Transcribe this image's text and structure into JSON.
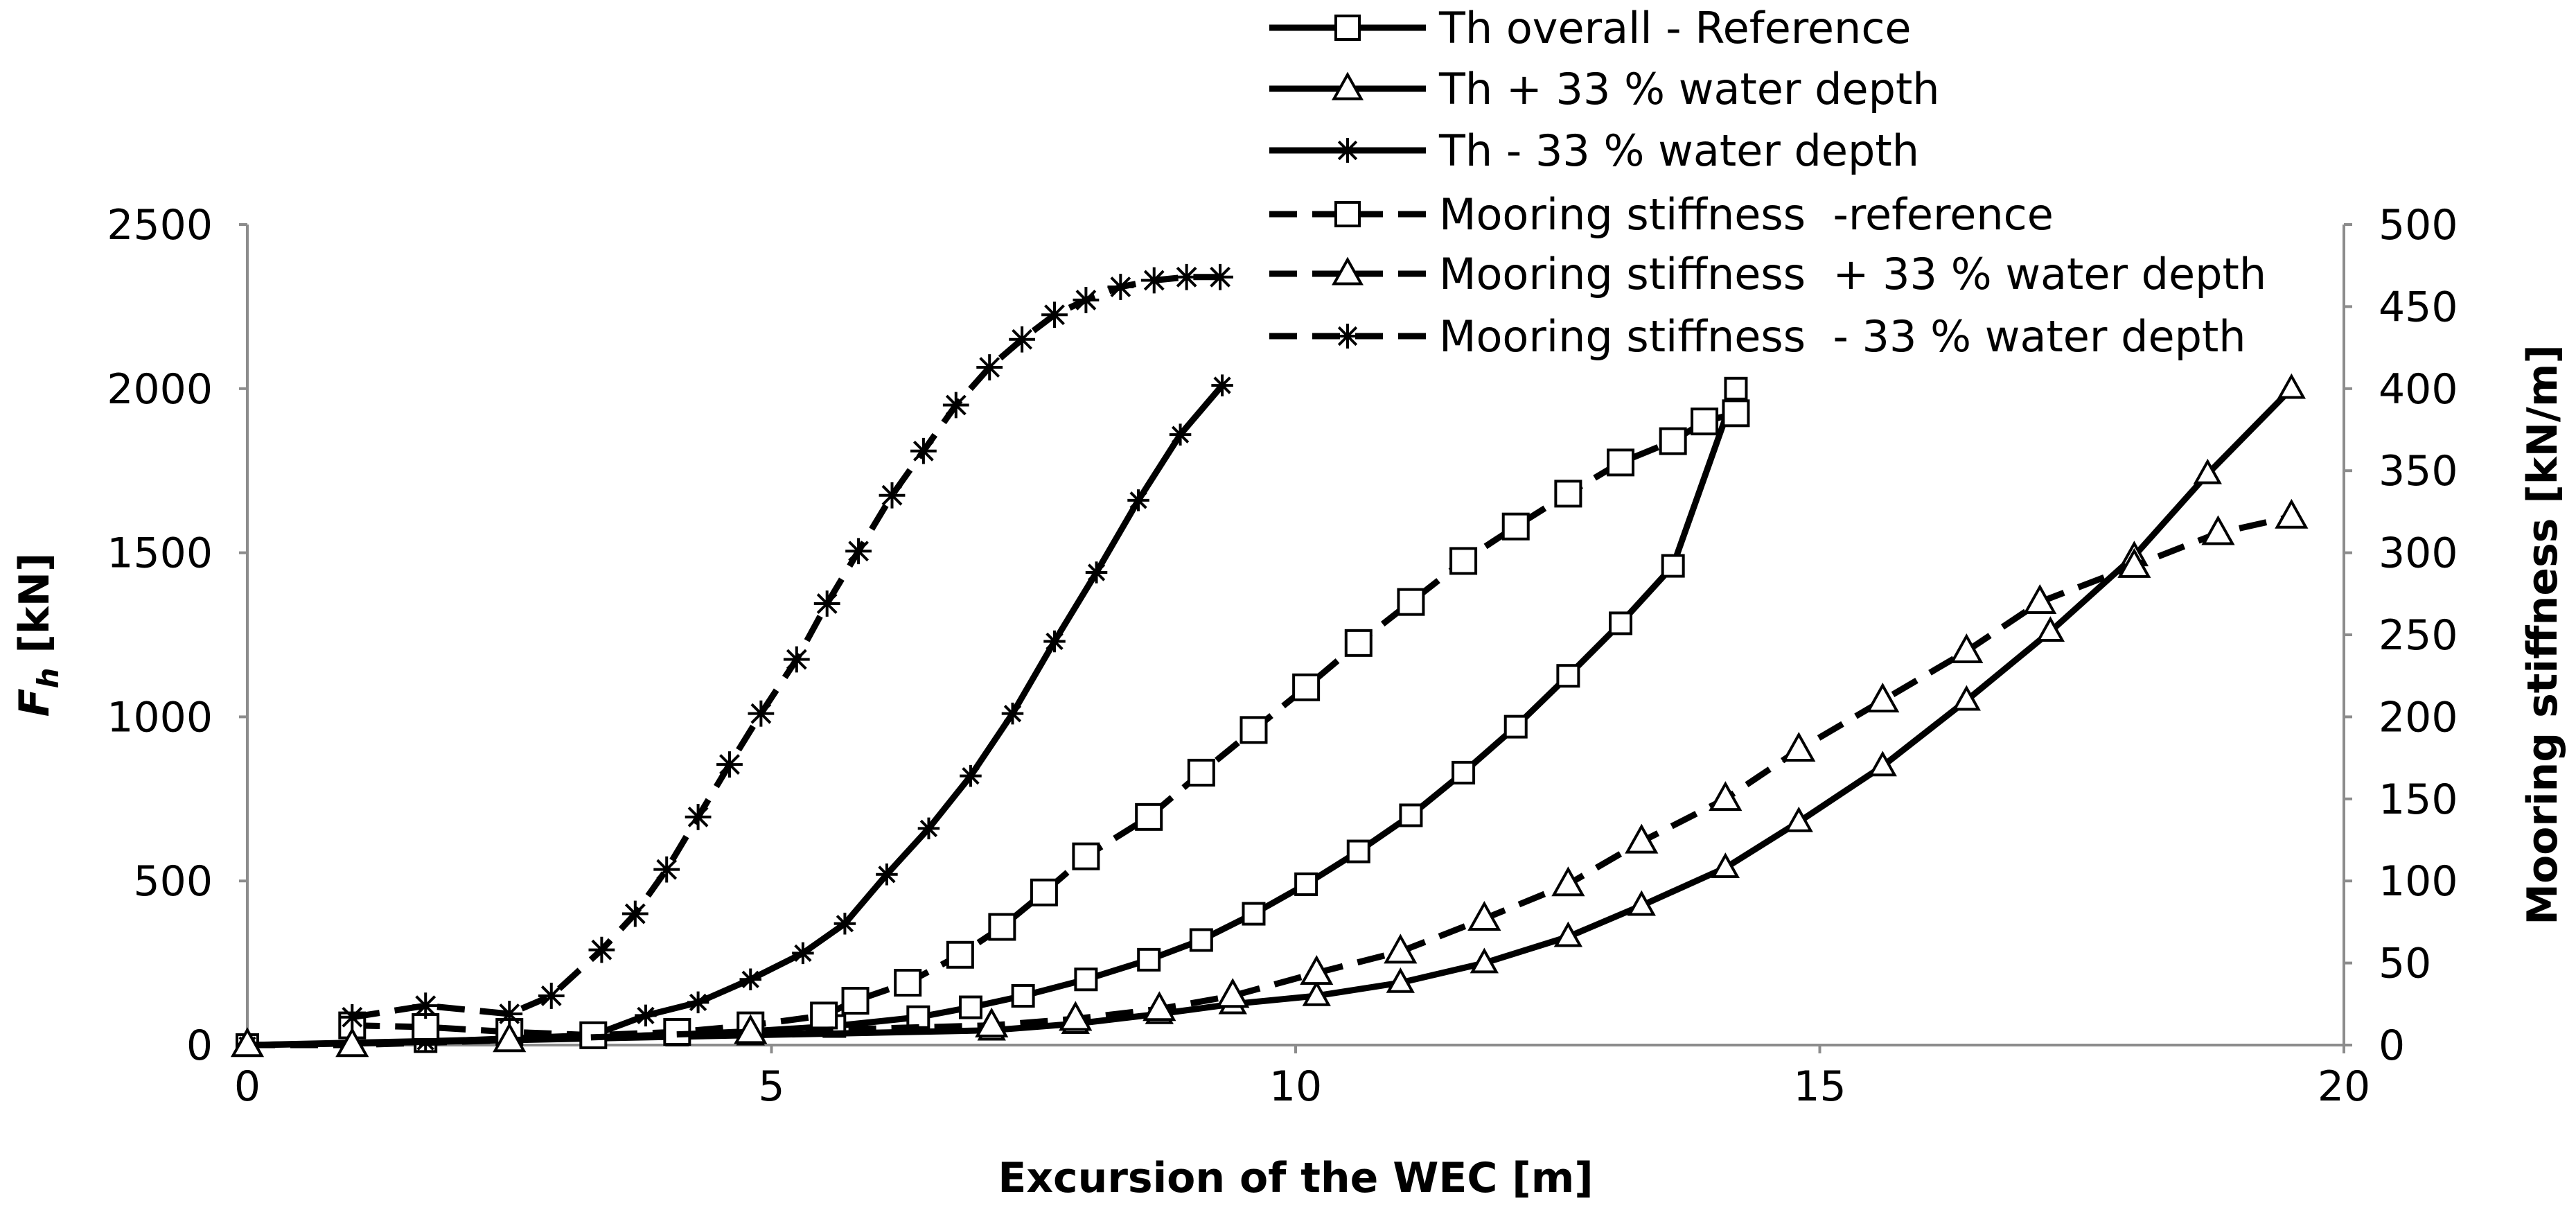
{
  "chart_data": {
    "type": "line",
    "xlabel": "Excursion of the WEC [m]",
    "ylabel": {
      "main": "F",
      "sub": "h",
      "unit": " [kN]"
    },
    "y2label": "Mooring stiffness [kN/m]",
    "xlim": [
      0,
      20
    ],
    "xticks": [
      0,
      5,
      10,
      15,
      20
    ],
    "ylim": [
      0,
      2500
    ],
    "yticks": [
      0,
      500,
      1000,
      1500,
      2000,
      2500
    ],
    "y2lim": [
      0,
      500
    ],
    "y2ticks": [
      0,
      50,
      100,
      150,
      200,
      250,
      300,
      350,
      400,
      450,
      500
    ],
    "grid": false,
    "legend": "top",
    "series": [
      {
        "name": "Th overall - Reference",
        "color": "#000000",
        "dashed": false,
        "marker": "square",
        "x": [
          0,
          1.7,
          2.5,
          3.3,
          4.1,
          4.8,
          5.6,
          6.4,
          6.9,
          7.4,
          8.0,
          8.6,
          9.1,
          9.6,
          10.1,
          10.6,
          11.1,
          11.6,
          12.1,
          12.6,
          13.1,
          13.6,
          14.2
        ],
        "values": [
          0,
          12,
          18,
          24,
          32,
          42,
          58,
          85,
          115,
          150,
          200,
          260,
          320,
          400,
          490,
          590,
          700,
          830,
          970,
          1125,
          1285,
          1460,
          2000
        ]
      },
      {
        "name": "Th + 33 % water depth",
        "color": "#000000",
        "dashed": false,
        "marker": "triangle",
        "x": [
          0,
          1.0,
          2.5,
          4.8,
          7.1,
          7.9,
          8.7,
          9.4,
          10.2,
          11.0,
          11.8,
          12.6,
          13.3,
          14.1,
          14.8,
          15.6,
          16.4,
          17.2,
          18.0,
          18.7,
          19.5
        ],
        "values": [
          0,
          5,
          15,
          30,
          45,
          65,
          95,
          125,
          150,
          190,
          250,
          330,
          425,
          540,
          680,
          850,
          1050,
          1260,
          1490,
          1740,
          2000
        ]
      },
      {
        "name": "Th - 33 % water depth",
        "color": "#000000",
        "dashed": false,
        "marker": "star",
        "x": [
          0,
          1.0,
          1.7,
          2.5,
          3.3,
          3.8,
          4.3,
          4.8,
          5.3,
          5.7,
          6.1,
          6.5,
          6.9,
          7.3,
          7.7,
          8.1,
          8.5,
          8.9,
          9.3
        ],
        "values": [
          0,
          5,
          10,
          20,
          30,
          90,
          130,
          200,
          280,
          370,
          520,
          660,
          820,
          1010,
          1230,
          1440,
          1660,
          1860,
          2010
        ]
      },
      {
        "name": "Mooring stiffness  -reference",
        "color": "#000000",
        "dashed": true,
        "marker": "square",
        "axis": "y2",
        "x": [
          1.0,
          1.7,
          2.5,
          3.3,
          4.1,
          4.8,
          5.5,
          5.8,
          6.3,
          6.8,
          7.2,
          7.6,
          8.0,
          8.6,
          9.1,
          9.6,
          10.1,
          10.6,
          11.1,
          11.6,
          12.1,
          12.6,
          13.1,
          13.6,
          13.9,
          14.2
        ],
        "values": [
          12,
          11,
          8,
          6,
          8,
          12,
          18,
          27,
          38,
          55,
          72,
          93,
          115,
          139,
          166,
          192,
          218,
          245,
          270,
          295,
          316,
          336,
          355,
          368,
          380,
          385
        ]
      },
      {
        "name": "Mooring stiffness  + 33 % water depth",
        "color": "#000000",
        "dashed": true,
        "marker": "triangle",
        "axis": "y2",
        "x": [
          0,
          1.0,
          2.5,
          4.8,
          7.1,
          7.9,
          8.7,
          9.4,
          10.2,
          11.0,
          11.8,
          12.6,
          13.3,
          14.1,
          14.8,
          15.6,
          16.4,
          17.1,
          18.0,
          18.8,
          19.5
        ],
        "values": [
          0,
          0,
          3,
          8,
          12,
          16,
          22,
          30,
          44,
          57,
          77,
          98,
          124,
          150,
          180,
          210,
          240,
          270,
          292,
          312,
          322
        ]
      },
      {
        "name": "Mooring stiffness  - 33 % water depth",
        "color": "#000000",
        "dashed": true,
        "marker": "star",
        "axis": "y2",
        "x": [
          1.0,
          1.7,
          2.5,
          2.9,
          3.38,
          3.7,
          4.0,
          4.3,
          4.6,
          4.9,
          5.24,
          5.53,
          5.83,
          6.15,
          6.45,
          6.76,
          7.08,
          7.39,
          7.7,
          8.0,
          8.33,
          8.65,
          8.96,
          9.28
        ],
        "values": [
          17,
          24,
          19,
          30,
          58,
          80,
          107,
          139,
          171,
          202,
          235,
          269,
          301,
          335,
          362,
          390,
          413,
          430,
          445,
          454,
          462,
          466,
          468,
          468
        ]
      }
    ]
  }
}
